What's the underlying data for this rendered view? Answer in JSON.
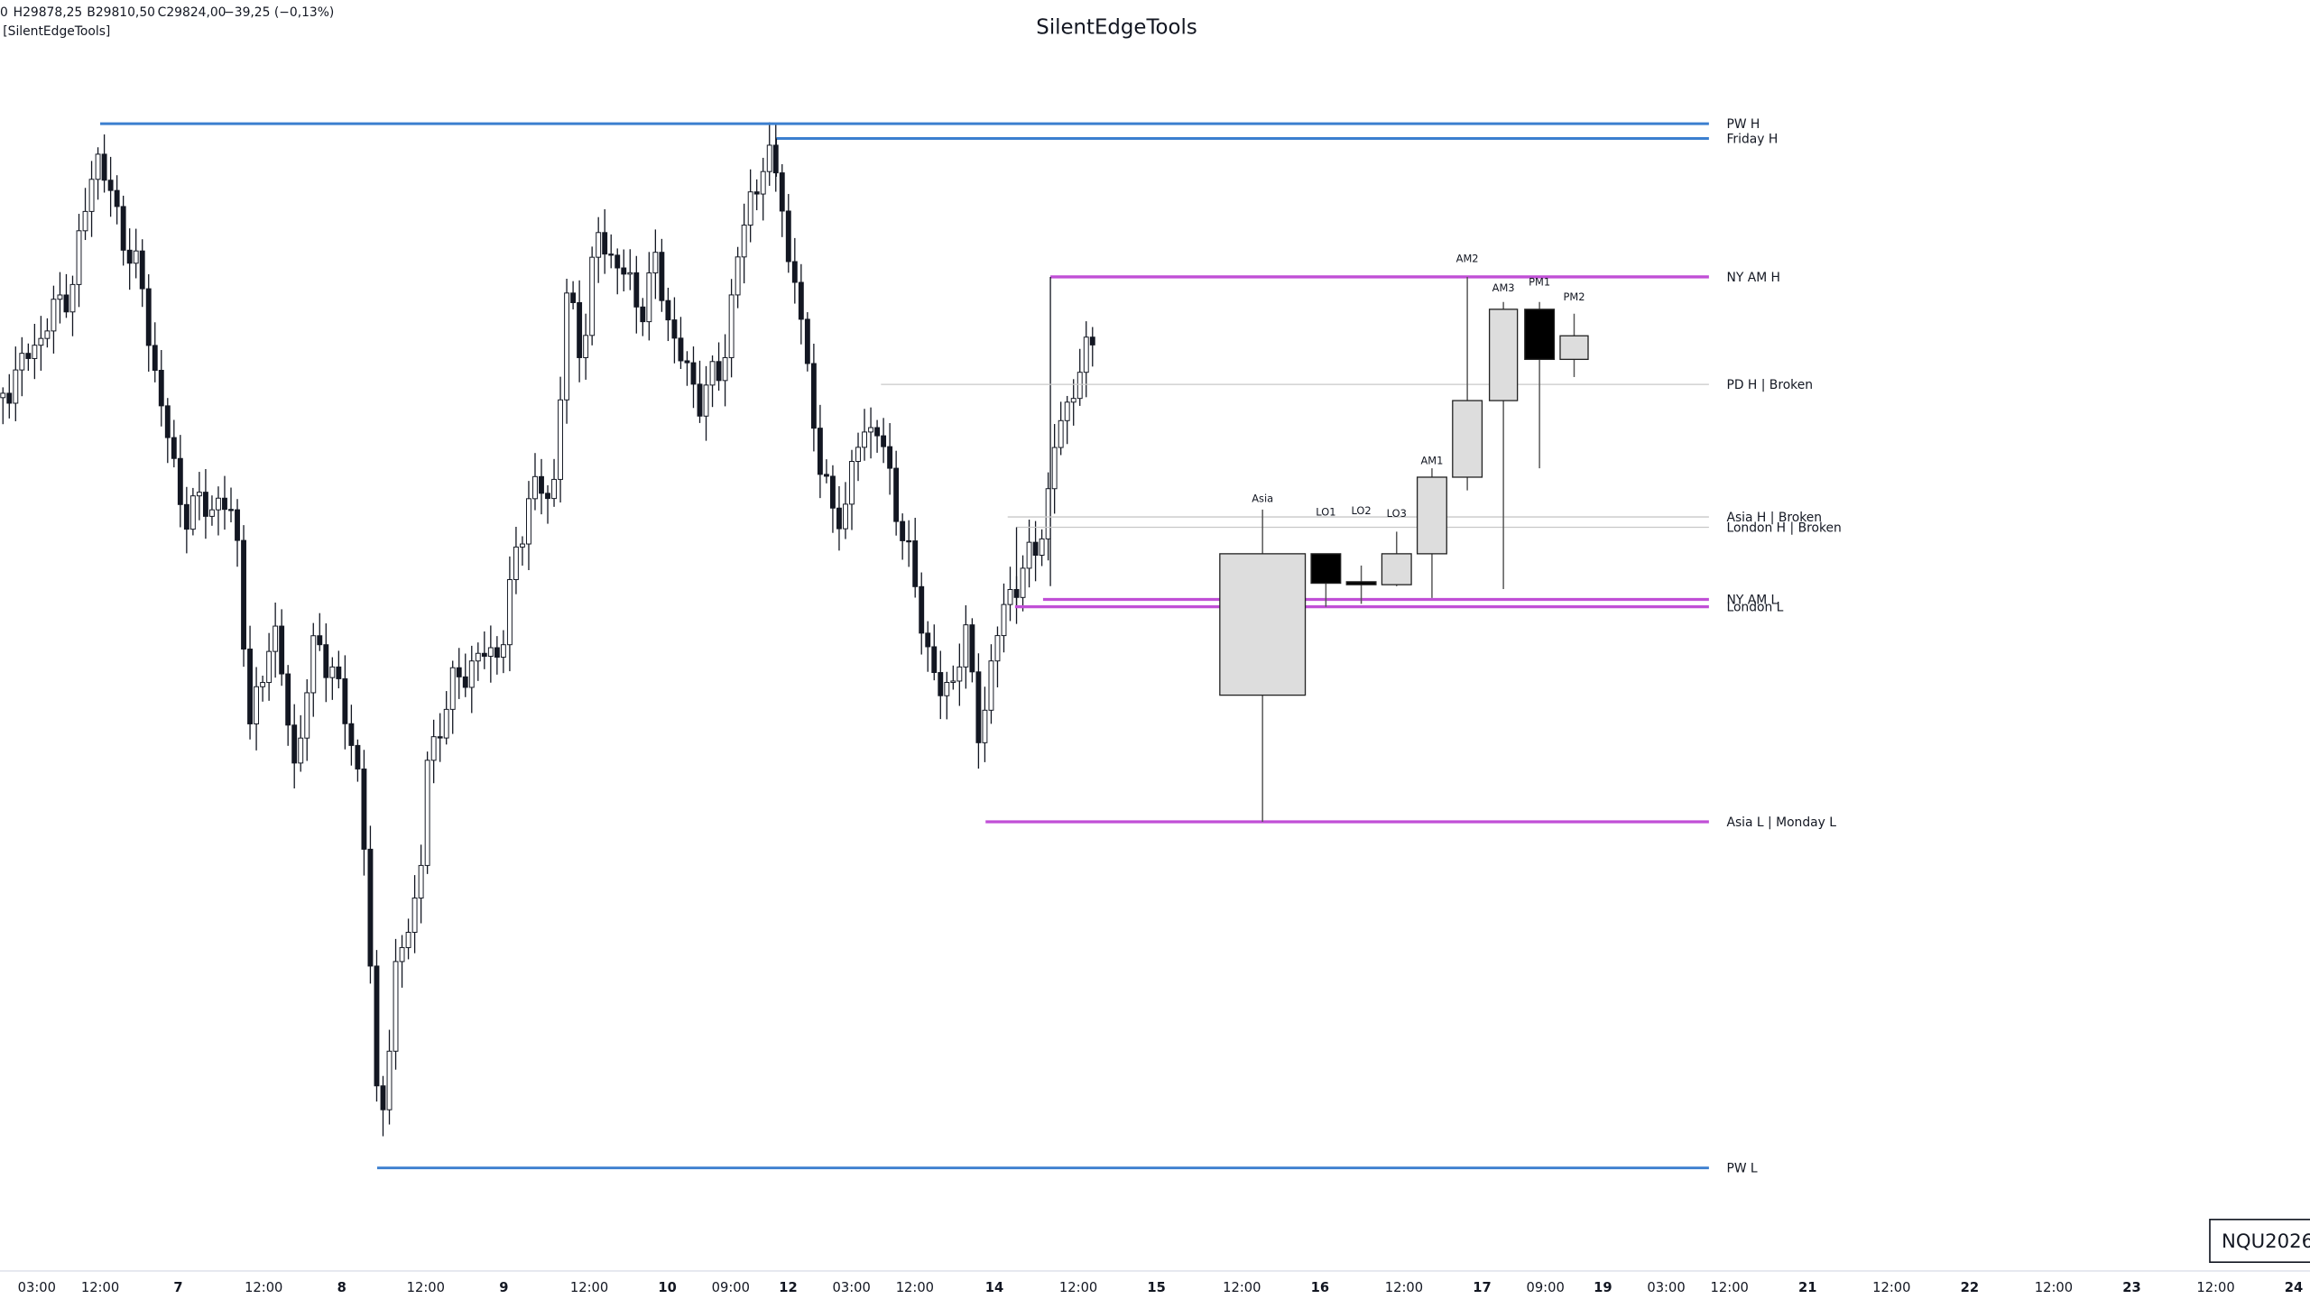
{
  "header": {
    "ohlc": [
      "0",
      "H29878,25",
      "B29810,50",
      "C29824,00",
      "−39,25 (−0,13%)"
    ],
    "indicator": "[SilentEdgeTools]",
    "title": "SilentEdgeTools"
  },
  "levels": [
    {
      "label": "PW H",
      "color": "#3b7fcf"
    },
    {
      "label": "Friday H",
      "color": "#3b7fcf"
    },
    {
      "label": "NY AM H",
      "color": "#c04fd6"
    },
    {
      "label": "PD H | Broken",
      "color": "#c8c8c8"
    },
    {
      "label": "Asia H | Broken",
      "color": "#c8c8c8"
    },
    {
      "label": "London H | Broken",
      "color": "#c8c8c8"
    },
    {
      "label": "NY AM L",
      "color": "#c04fd6"
    },
    {
      "label": "London L",
      "color": "#c04fd6"
    },
    {
      "label": "Asia L | Monday L",
      "color": "#c04fd6"
    },
    {
      "label": "PW L",
      "color": "#3b7fcf"
    }
  ],
  "sessions": [
    {
      "label": "Asia",
      "color": "#787b86"
    },
    {
      "label": "LO1",
      "color": "#2962ff"
    },
    {
      "label": "LO2",
      "color": "#2962ff"
    },
    {
      "label": "LO3",
      "color": "#2962ff"
    },
    {
      "label": "AM1",
      "color": "#2e9e3e"
    },
    {
      "label": "AM2",
      "color": "#2e9e3e"
    },
    {
      "label": "AM3",
      "color": "#2e9e3e"
    },
    {
      "label": "PM1",
      "color": "#f08c1a"
    },
    {
      "label": "PM2",
      "color": "#f08c1a"
    }
  ],
  "x_axis": [
    "03:00",
    "12:00",
    "7",
    "12:00",
    "8",
    "12:00",
    "9",
    "12:00",
    "10",
    "09:00",
    "12",
    "03:00",
    "12:00",
    "14",
    "12:00",
    "15",
    "12:00",
    "16",
    "12:00",
    "17",
    "09:00",
    "19",
    "03:00",
    "12:00",
    "21",
    "12:00",
    "22",
    "12:00",
    "23",
    "12:00",
    "24"
  ],
  "symbol": "NQU2026"
}
